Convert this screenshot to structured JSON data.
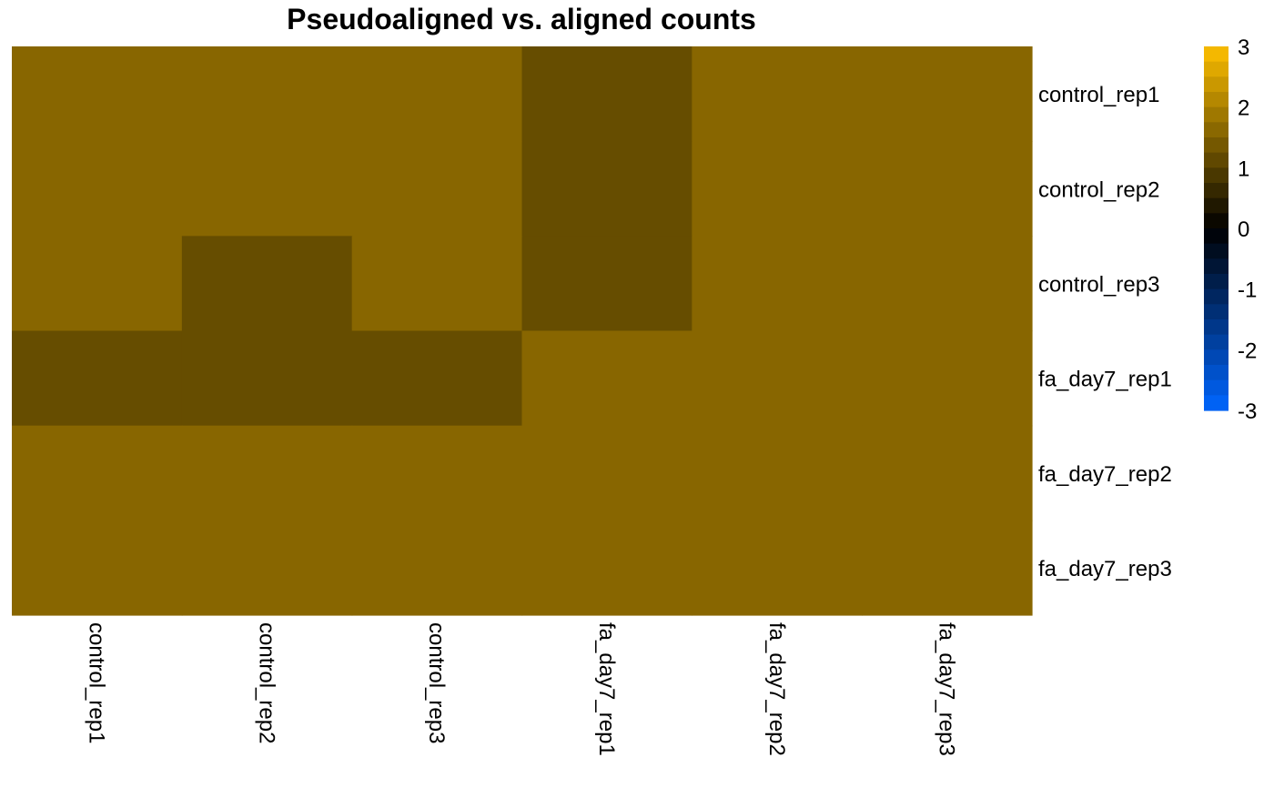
{
  "chart_data": {
    "type": "heatmap",
    "title": "Pseudoaligned vs. aligned counts",
    "rows": [
      "control_rep1",
      "control_rep2",
      "control_rep3",
      "fa_day7_rep1",
      "fa_day7_rep2",
      "fa_day7_rep3"
    ],
    "columns": [
      "control_rep1",
      "control_rep2",
      "control_rep3",
      "fa_day7_rep1",
      "fa_day7_rep2",
      "fa_day7_rep3"
    ],
    "values": [
      [
        1.6,
        1.6,
        1.6,
        1.2,
        1.6,
        1.6
      ],
      [
        1.6,
        1.6,
        1.6,
        1.2,
        1.6,
        1.6
      ],
      [
        1.6,
        1.2,
        1.6,
        1.2,
        1.6,
        1.6
      ],
      [
        1.2,
        1.2,
        1.2,
        1.6,
        1.6,
        1.6
      ],
      [
        1.6,
        1.6,
        1.6,
        1.6,
        1.6,
        1.6
      ],
      [
        1.6,
        1.6,
        1.6,
        1.6,
        1.6,
        1.6
      ]
    ],
    "color_scale": {
      "min": -3,
      "max": 3,
      "low_color": "#0066ff",
      "mid_color": "#000000",
      "high_color": "#ffc000",
      "ticks": [
        "3",
        "2",
        "1",
        "0",
        "-1",
        "-2",
        "-3"
      ],
      "tick_values": [
        3,
        2,
        1,
        0,
        -1,
        -2,
        -3
      ]
    },
    "legend_position": "right",
    "row_labels_position": "right",
    "column_labels_position": "bottom",
    "column_label_rotation": "vertical"
  }
}
